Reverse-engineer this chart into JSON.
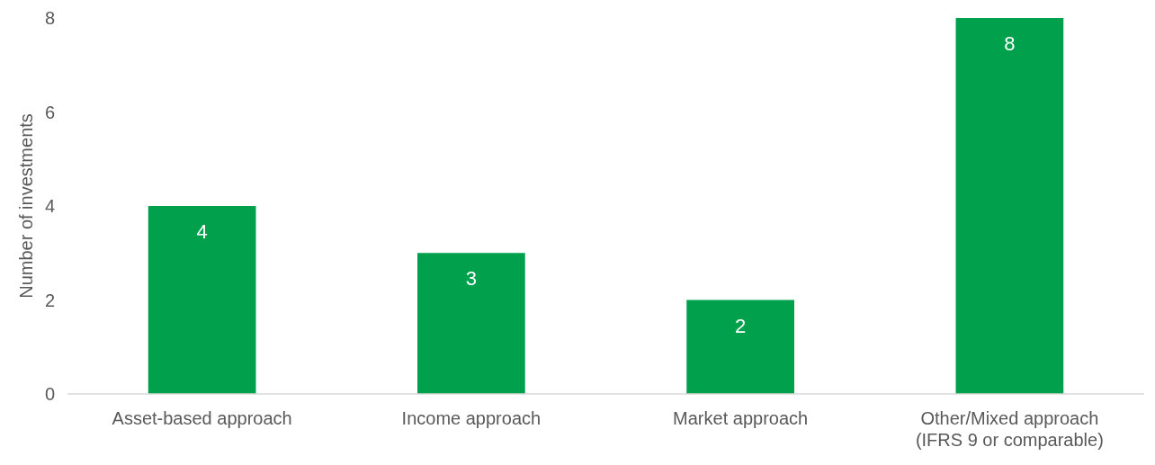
{
  "chart_data": {
    "type": "bar",
    "ylabel": "Number of investments",
    "categories": [
      "Asset-based approach",
      "Income approach",
      "Market approach",
      "Other/Mixed approach (IFRS 9 or comparable)"
    ],
    "values": [
      4,
      3,
      2,
      8
    ],
    "color": "#00a04c",
    "ylim": [
      0,
      8
    ],
    "yticks": [
      0,
      2,
      4,
      6,
      8
    ],
    "data_labels": true
  }
}
